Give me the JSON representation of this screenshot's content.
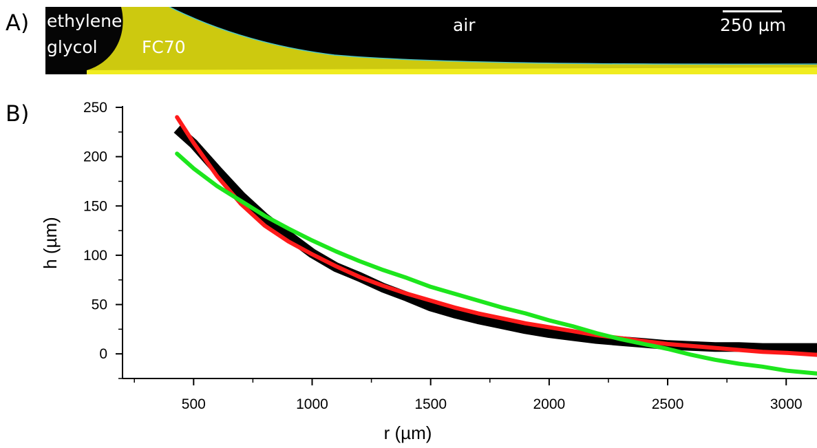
{
  "panel_a": {
    "label": "A)",
    "ethylene_line1": "ethylene",
    "ethylene_line2": "glycol",
    "fc70": "FC70",
    "air": "air",
    "scale_bar": "250 µm"
  },
  "panel_b": {
    "label": "B)"
  },
  "colors": {
    "data": "#000000",
    "fit_red": "#ff1a1a",
    "fit_green": "#1de61d",
    "fc70_yellow": "#e0dc10"
  },
  "chart_data": {
    "type": "line",
    "title": "",
    "xlabel": "r (µm)",
    "ylabel": "h (µm)",
    "xlim": [
      200,
      3130
    ],
    "ylim": [
      -25,
      250
    ],
    "xticks": [
      500,
      1000,
      1500,
      2000,
      2500,
      3000
    ],
    "yticks": [
      0,
      50,
      100,
      150,
      200,
      250
    ],
    "grid": false,
    "series": [
      {
        "style": "data",
        "color": "#000000",
        "x": [
          430,
          500,
          600,
          700,
          800,
          900,
          1000,
          1100,
          1200,
          1300,
          1400,
          1500,
          1600,
          1700,
          1800,
          1900,
          2000,
          2100,
          2200,
          2300,
          2400,
          2500,
          2600,
          2700,
          2800,
          2900,
          3000,
          3130
        ],
        "y": [
          228,
          213,
          186,
          160,
          138,
          120,
          102,
          88,
          78,
          67,
          58,
          48,
          41,
          35,
          30,
          25,
          21,
          18,
          15,
          13,
          11,
          9,
          8,
          7,
          7,
          6,
          6,
          6
        ]
      },
      {
        "style": "fit",
        "color": "#ff1a1a",
        "x": [
          430,
          500,
          600,
          700,
          800,
          900,
          1000,
          1100,
          1200,
          1300,
          1400,
          1500,
          1600,
          1700,
          1800,
          1900,
          2000,
          2100,
          2200,
          2300,
          2400,
          2500,
          2600,
          2700,
          2800,
          2900,
          3000,
          3130
        ],
        "y": [
          240,
          214,
          180,
          152,
          130,
          114,
          101,
          89,
          78,
          69,
          61,
          54,
          47,
          41,
          36,
          31,
          27,
          23,
          19,
          16,
          13,
          10,
          8,
          6,
          4,
          2,
          1,
          -1
        ]
      },
      {
        "style": "fit",
        "color": "#1de61d",
        "x": [
          430,
          500,
          600,
          700,
          800,
          900,
          1000,
          1100,
          1200,
          1300,
          1400,
          1500,
          1600,
          1700,
          1800,
          1900,
          2000,
          2100,
          2200,
          2300,
          2400,
          2500,
          2600,
          2700,
          2800,
          2900,
          3000,
          3130
        ],
        "y": [
          203,
          188,
          170,
          155,
          140,
          127,
          115,
          104,
          94,
          85,
          77,
          68,
          61,
          54,
          47,
          41,
          34,
          28,
          21,
          15,
          10,
          5,
          -1,
          -6,
          -10,
          -13,
          -17,
          -20
        ]
      }
    ]
  }
}
